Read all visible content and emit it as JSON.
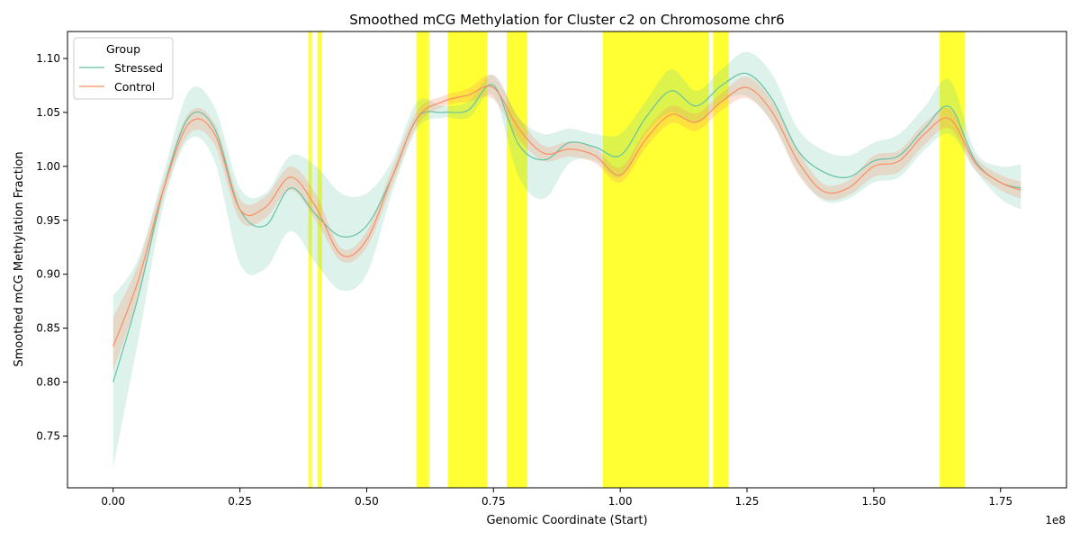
{
  "chart_data": {
    "type": "line",
    "title": "Smoothed mCG Methylation for Cluster c2 on Chromosome chr6",
    "xlabel": "Genomic Coordinate (Start)",
    "ylabel": "Smoothed mCG Methylation Fraction",
    "x_offset_text": "1e8",
    "xlim": [
      -0.09,
      1.88
    ],
    "ylim": [
      0.702,
      1.125
    ],
    "x_ticks": [
      0.0,
      0.25,
      0.5,
      0.75,
      1.0,
      1.25,
      1.5,
      1.75
    ],
    "x_tick_labels": [
      "0.00",
      "0.25",
      "0.50",
      "0.75",
      "1.00",
      "1.25",
      "1.50",
      "1.75"
    ],
    "y_ticks": [
      0.75,
      0.8,
      0.85,
      0.9,
      0.95,
      1.0,
      1.05,
      1.1
    ],
    "y_tick_labels": [
      "0.75",
      "0.80",
      "0.85",
      "0.90",
      "0.95",
      "1.00",
      "1.05",
      "1.10"
    ],
    "grid": false,
    "legend": {
      "title": "Group",
      "placement": "upper-left"
    },
    "highlight_color": "#ffff00",
    "highlight_regions": [
      [
        0.385,
        0.392
      ],
      [
        0.403,
        0.412
      ],
      [
        0.598,
        0.623
      ],
      [
        0.66,
        0.738
      ],
      [
        0.776,
        0.817
      ],
      [
        0.966,
        1.175
      ],
      [
        1.183,
        1.214
      ],
      [
        1.63,
        1.68
      ]
    ],
    "series": [
      {
        "name": "Stressed",
        "color": "#66c2a5",
        "x": [
          0.0,
          0.05,
          0.1,
          0.15,
          0.2,
          0.25,
          0.3,
          0.35,
          0.4,
          0.45,
          0.5,
          0.55,
          0.6,
          0.65,
          0.7,
          0.75,
          0.8,
          0.85,
          0.9,
          0.95,
          1.0,
          1.05,
          1.1,
          1.15,
          1.2,
          1.25,
          1.3,
          1.35,
          1.4,
          1.45,
          1.5,
          1.55,
          1.6,
          1.65,
          1.7,
          1.75,
          1.79
        ],
        "y": [
          0.8,
          0.88,
          0.98,
          1.046,
          1.035,
          0.96,
          0.945,
          0.98,
          0.955,
          0.935,
          0.945,
          0.99,
          1.045,
          1.05,
          1.052,
          1.075,
          1.02,
          1.006,
          1.022,
          1.018,
          1.01,
          1.045,
          1.07,
          1.056,
          1.075,
          1.086,
          1.062,
          1.015,
          0.995,
          0.99,
          1.005,
          1.01,
          1.035,
          1.055,
          1.005,
          0.985,
          0.98
        ],
        "lower": [
          0.72,
          0.84,
          0.965,
          1.025,
          1.005,
          0.91,
          0.905,
          0.94,
          0.91,
          0.885,
          0.9,
          0.975,
          1.035,
          1.045,
          1.045,
          1.065,
          0.99,
          0.97,
          1.003,
          1.005,
          0.99,
          1.03,
          1.05,
          1.04,
          1.06,
          1.065,
          1.04,
          0.995,
          0.968,
          0.97,
          0.985,
          0.99,
          1.015,
          1.03,
          0.996,
          0.97,
          0.96
        ],
        "upper": [
          0.88,
          0.915,
          0.995,
          1.07,
          1.055,
          0.98,
          0.975,
          1.01,
          1.0,
          0.975,
          0.975,
          1.005,
          1.06,
          1.056,
          1.06,
          1.085,
          1.045,
          1.03,
          1.035,
          1.03,
          1.03,
          1.06,
          1.09,
          1.07,
          1.09,
          1.106,
          1.085,
          1.035,
          1.015,
          1.01,
          1.022,
          1.03,
          1.055,
          1.08,
          1.014,
          1.0,
          1.002
        ]
      },
      {
        "name": "Control",
        "color": "#fc8d62",
        "x": [
          0.0,
          0.05,
          0.1,
          0.15,
          0.2,
          0.25,
          0.3,
          0.35,
          0.4,
          0.45,
          0.5,
          0.55,
          0.6,
          0.65,
          0.7,
          0.75,
          0.8,
          0.85,
          0.9,
          0.95,
          1.0,
          1.05,
          1.1,
          1.15,
          1.2,
          1.25,
          1.3,
          1.35,
          1.4,
          1.45,
          1.5,
          1.55,
          1.6,
          1.65,
          1.7,
          1.75,
          1.79
        ],
        "y": [
          0.833,
          0.895,
          0.98,
          1.04,
          1.03,
          0.96,
          0.962,
          0.99,
          0.962,
          0.918,
          0.932,
          0.99,
          1.045,
          1.06,
          1.066,
          1.073,
          1.035,
          1.012,
          1.016,
          1.01,
          0.992,
          1.025,
          1.048,
          1.041,
          1.06,
          1.073,
          1.05,
          1.005,
          0.977,
          0.98,
          1.0,
          1.005,
          1.03,
          1.044,
          1.003,
          0.985,
          0.978
        ],
        "lower": [
          0.81,
          0.88,
          0.972,
          1.03,
          1.02,
          0.95,
          0.952,
          0.978,
          0.95,
          0.912,
          0.925,
          0.982,
          1.038,
          1.055,
          1.06,
          1.062,
          1.025,
          1.005,
          1.009,
          1.003,
          0.985,
          1.017,
          1.04,
          1.033,
          1.052,
          1.063,
          1.04,
          0.993,
          0.97,
          0.973,
          0.99,
          0.995,
          1.02,
          1.035,
          0.997,
          0.978,
          0.97
        ],
        "upper": [
          0.86,
          0.91,
          0.988,
          1.05,
          1.04,
          0.97,
          0.972,
          1.0,
          0.974,
          0.924,
          0.94,
          0.998,
          1.052,
          1.065,
          1.072,
          1.084,
          1.045,
          1.019,
          1.023,
          1.017,
          0.999,
          1.033,
          1.056,
          1.049,
          1.068,
          1.083,
          1.06,
          1.015,
          0.984,
          0.987,
          1.01,
          1.015,
          1.04,
          1.053,
          1.009,
          0.992,
          0.986
        ]
      }
    ]
  }
}
